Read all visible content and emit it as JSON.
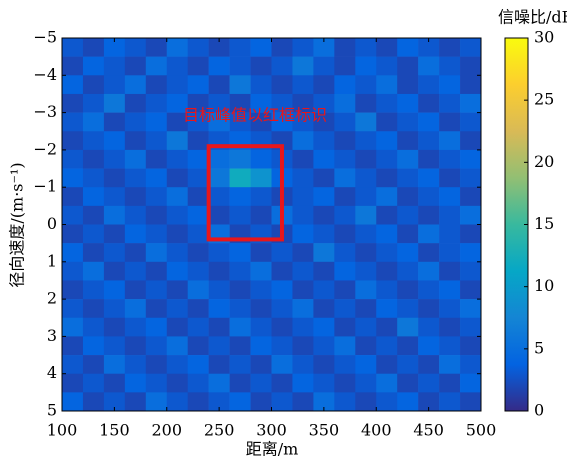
{
  "chart_data": {
    "type": "heatmap",
    "xlabel": "距离/m",
    "ylabel": "径向速度/(m·s⁻¹)",
    "colorbar_label": "信噪比/dB",
    "annotation": "目标峰值以红框标识",
    "box": {
      "x": [
        240,
        310
      ],
      "y": [
        -2.1,
        0.4
      ],
      "color": "#e8161b"
    },
    "colormap": "parula",
    "xlim": [
      100,
      500
    ],
    "ylim": [
      -5,
      5
    ],
    "y_inverted": true,
    "clim": [
      0,
      30
    ],
    "xticks": [
      100,
      150,
      200,
      250,
      300,
      350,
      400,
      450,
      500
    ],
    "yticks": [
      {
        "value": -5,
        "label": "−5"
      },
      {
        "value": -4,
        "label": "−4"
      },
      {
        "value": -3,
        "label": "−3"
      },
      {
        "value": -2,
        "label": "−2"
      },
      {
        "value": -1,
        "label": "−1"
      },
      0,
      1,
      2,
      3,
      4,
      5
    ],
    "cticks": [
      0,
      5,
      10,
      15,
      20,
      25,
      30
    ],
    "x": [
      110,
      130,
      150,
      170,
      190,
      210,
      230,
      250,
      270,
      290,
      310,
      330,
      350,
      370,
      390,
      410,
      430,
      450,
      470,
      490
    ],
    "y": [
      -4.75,
      -4.25,
      -3.75,
      -3.25,
      -2.75,
      -2.25,
      -1.75,
      -1.25,
      -0.75,
      -0.25,
      0.25,
      0.75,
      1.25,
      1.75,
      2.25,
      2.75,
      3.25,
      3.75,
      4.25,
      4.75
    ],
    "z": [
      [
        3,
        2,
        4,
        3,
        2,
        5,
        3,
        2,
        3,
        4,
        2,
        3,
        5,
        2,
        3,
        2,
        4,
        3,
        2,
        3
      ],
      [
        2,
        4,
        3,
        2,
        5,
        3,
        2,
        4,
        3,
        2,
        3,
        6,
        3,
        2,
        4,
        3,
        2,
        5,
        3,
        2
      ],
      [
        4,
        2,
        3,
        5,
        2,
        3,
        4,
        2,
        6,
        3,
        2,
        3,
        2,
        4,
        3,
        5,
        2,
        3,
        4,
        2
      ],
      [
        2,
        3,
        6,
        2,
        3,
        4,
        2,
        3,
        2,
        4,
        3,
        2,
        3,
        5,
        2,
        3,
        4,
        2,
        3,
        5
      ],
      [
        3,
        5,
        2,
        3,
        4,
        2,
        3,
        5,
        3,
        2,
        4,
        3,
        2,
        3,
        6,
        2,
        3,
        4,
        2,
        3
      ],
      [
        2,
        3,
        4,
        2,
        3,
        6,
        2,
        3,
        4,
        3,
        2,
        5,
        3,
        2,
        3,
        4,
        2,
        3,
        5,
        2
      ],
      [
        3,
        2,
        3,
        5,
        2,
        3,
        4,
        5,
        6,
        4,
        3,
        2,
        4,
        3,
        2,
        3,
        5,
        2,
        3,
        4
      ],
      [
        4,
        3,
        2,
        3,
        4,
        2,
        3,
        6,
        12,
        9,
        4,
        3,
        2,
        5,
        3,
        2,
        3,
        4,
        2,
        3
      ],
      [
        2,
        4,
        3,
        2,
        3,
        5,
        2,
        3,
        4,
        3,
        2,
        3,
        4,
        2,
        3,
        5,
        2,
        3,
        4,
        2
      ],
      [
        3,
        2,
        5,
        3,
        2,
        3,
        4,
        2,
        3,
        2,
        5,
        3,
        2,
        3,
        6,
        2,
        3,
        2,
        3,
        5
      ],
      [
        2,
        3,
        2,
        4,
        3,
        2,
        3,
        5,
        2,
        3,
        2,
        4,
        3,
        2,
        3,
        4,
        2,
        5,
        3,
        2
      ],
      [
        4,
        2,
        3,
        2,
        5,
        3,
        2,
        3,
        4,
        2,
        3,
        2,
        6,
        3,
        2,
        3,
        4,
        2,
        3,
        4
      ],
      [
        3,
        5,
        2,
        3,
        2,
        4,
        3,
        2,
        3,
        5,
        2,
        3,
        2,
        4,
        3,
        2,
        3,
        5,
        2,
        3
      ],
      [
        2,
        3,
        4,
        2,
        3,
        2,
        5,
        3,
        2,
        3,
        4,
        2,
        3,
        2,
        5,
        3,
        2,
        3,
        4,
        2
      ],
      [
        3,
        2,
        3,
        5,
        2,
        3,
        2,
        4,
        3,
        2,
        3,
        5,
        2,
        3,
        2,
        4,
        3,
        2,
        3,
        5
      ],
      [
        5,
        3,
        2,
        3,
        4,
        2,
        3,
        2,
        5,
        3,
        2,
        3,
        4,
        2,
        3,
        2,
        6,
        3,
        2,
        3
      ],
      [
        2,
        4,
        3,
        2,
        3,
        5,
        2,
        3,
        2,
        4,
        3,
        2,
        3,
        5,
        2,
        3,
        2,
        4,
        3,
        2
      ],
      [
        3,
        2,
        5,
        3,
        2,
        3,
        4,
        2,
        3,
        2,
        5,
        3,
        2,
        3,
        4,
        2,
        3,
        2,
        5,
        3
      ],
      [
        2,
        3,
        2,
        4,
        3,
        2,
        3,
        5,
        2,
        3,
        2,
        4,
        3,
        2,
        3,
        5,
        2,
        3,
        2,
        4
      ],
      [
        4,
        2,
        3,
        2,
        5,
        3,
        2,
        3,
        4,
        2,
        3,
        2,
        5,
        3,
        2,
        3,
        4,
        2,
        3,
        2
      ]
    ]
  }
}
